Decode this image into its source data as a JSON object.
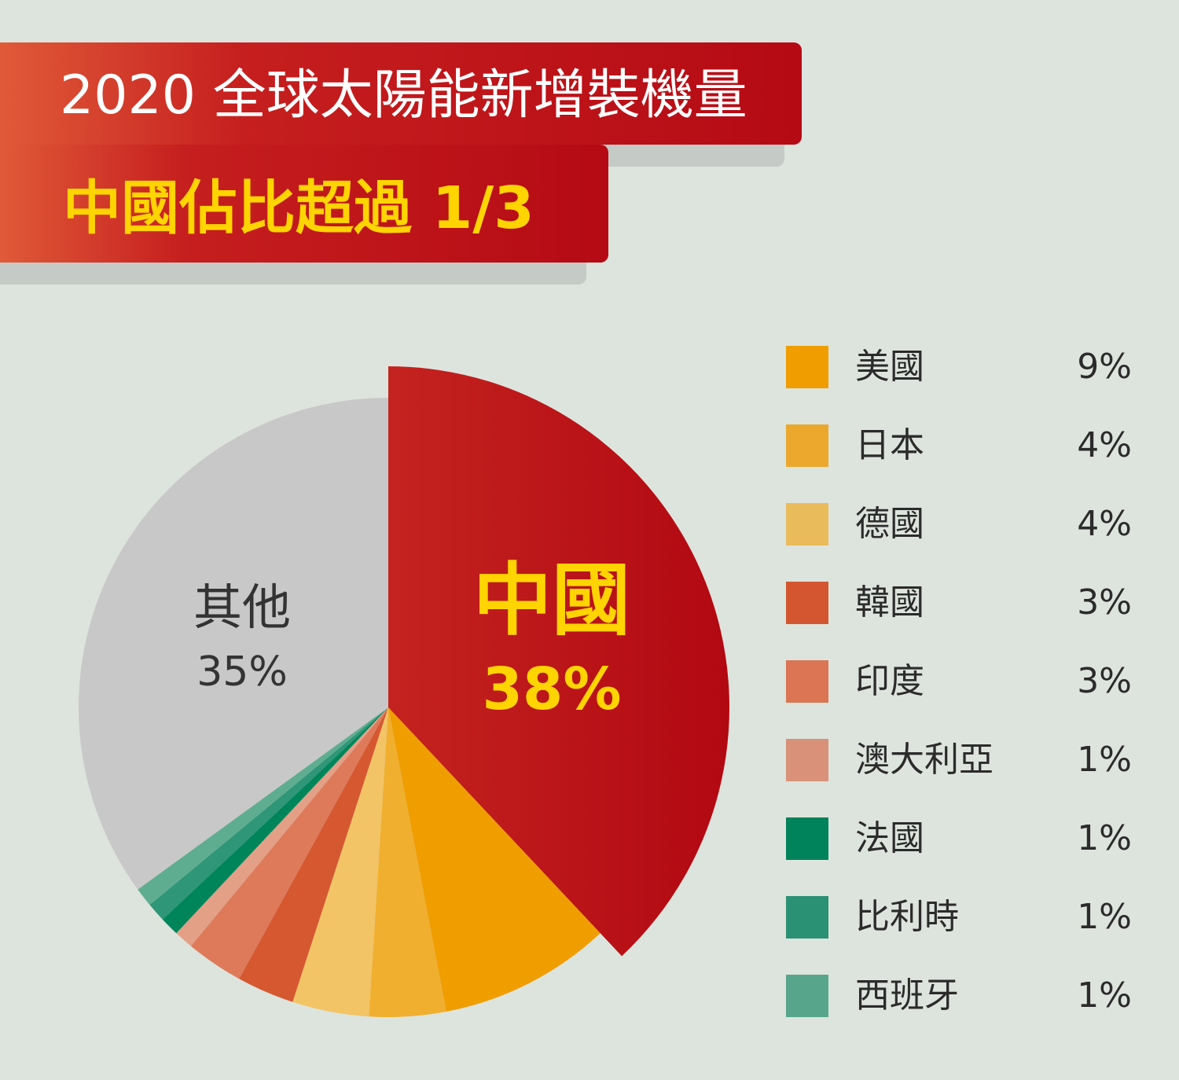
{
  "title": "2020 全球太陽能新增裝機量",
  "subtitle": "中國佔比超過 1/3",
  "chart_data": {
    "type": "pie",
    "title": "2020 全球太陽能新增裝機量",
    "subtitle": "中國佔比超過 1/3",
    "highlight": {
      "label": "中國",
      "value_text": "38%",
      "color": "#b50a14"
    },
    "other_slice": {
      "label": "其他",
      "value_text": "35%",
      "color": "#c8c8c8"
    },
    "slices": [
      {
        "label": "中國",
        "value": 38,
        "value_text": "38%",
        "color": "#b50a14"
      },
      {
        "label": "美國",
        "value": 9,
        "value_text": "9%",
        "color": "#f09d00"
      },
      {
        "label": "日本",
        "value": 4,
        "value_text": "4%",
        "color": "#f0af2f"
      },
      {
        "label": "德國",
        "value": 4,
        "value_text": "4%",
        "color": "#f3c465"
      },
      {
        "label": "韓國",
        "value": 3,
        "value_text": "3%",
        "color": "#d55831"
      },
      {
        "label": "印度",
        "value": 3,
        "value_text": "3%",
        "color": "#de7a5a"
      },
      {
        "label": "澳大利亞",
        "value": 1,
        "value_text": "1%",
        "color": "#e3a087"
      },
      {
        "label": "法國",
        "value": 1,
        "value_text": "1%",
        "color": "#00855a"
      },
      {
        "label": "比利時",
        "value": 1,
        "value_text": "1%",
        "color": "#2f9677"
      },
      {
        "label": "西班牙",
        "value": 1,
        "value_text": "1%",
        "color": "#5fad91"
      },
      {
        "label": "其他",
        "value": 35,
        "value_text": "35%",
        "color": "#c8c8c8"
      }
    ],
    "legend": [
      {
        "label": "美國",
        "value_text": "9%",
        "color": "#f09d00"
      },
      {
        "label": "日本",
        "value_text": "4%",
        "color": "#eba82c"
      },
      {
        "label": "德國",
        "value_text": "4%",
        "color": "#e9bb5b"
      },
      {
        "label": "韓國",
        "value_text": "3%",
        "color": "#d35630"
      },
      {
        "label": "印度",
        "value_text": "3%",
        "color": "#db7553"
      },
      {
        "label": "澳大利亞",
        "value_text": "1%",
        "color": "#d9917a"
      },
      {
        "label": "法國",
        "value_text": "1%",
        "color": "#00825a"
      },
      {
        "label": "比利時",
        "value_text": "1%",
        "color": "#2a9174"
      },
      {
        "label": "西班牙",
        "value_text": "1%",
        "color": "#57a68b"
      }
    ],
    "legend_position": "right"
  }
}
